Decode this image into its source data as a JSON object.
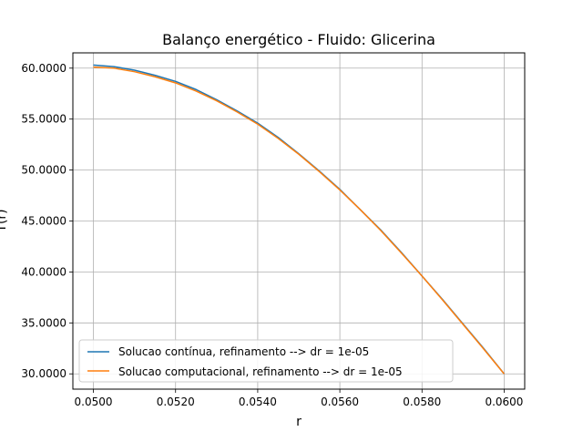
{
  "chart_data": {
    "type": "line",
    "title": "Balanço energético - Fluido: Glicerina",
    "xlabel": "r",
    "ylabel": "T(r)",
    "xlim": [
      0.0495,
      0.0605
    ],
    "ylim": [
      28.5,
      61.5
    ],
    "xticks": [
      0.05,
      0.052,
      0.054,
      0.056,
      0.058,
      0.06
    ],
    "xtick_labels": [
      "0.0500",
      "0.0520",
      "0.0540",
      "0.0560",
      "0.0580",
      "0.0600"
    ],
    "yticks": [
      30,
      35,
      40,
      45,
      50,
      55,
      60
    ],
    "ytick_labels": [
      "30.0000",
      "35.0000",
      "40.0000",
      "45.0000",
      "50.0000",
      "55.0000",
      "60.0000"
    ],
    "grid": true,
    "legend_position": "lower-left",
    "series": [
      {
        "name": "Solucao contínua, refinamento --> dr = 1e-05",
        "color": "#1f77b4",
        "x": [
          0.05,
          0.0505,
          0.051,
          0.0515,
          0.052,
          0.0525,
          0.053,
          0.0535,
          0.054,
          0.0545,
          0.055,
          0.0555,
          0.056,
          0.0565,
          0.057,
          0.0575,
          0.058,
          0.0585,
          0.059,
          0.0595,
          0.06
        ],
        "y": [
          60.3,
          60.15,
          59.8,
          59.3,
          58.7,
          57.9,
          56.9,
          55.8,
          54.6,
          53.2,
          51.6,
          49.9,
          48.1,
          46.1,
          44.1,
          41.9,
          39.6,
          37.3,
          34.9,
          32.5,
          30.0
        ]
      },
      {
        "name": "Solucao computacional, refinamento --> dr = 1e-05",
        "color": "#ff7f0e",
        "x": [
          0.05,
          0.0505,
          0.051,
          0.0515,
          0.052,
          0.0525,
          0.053,
          0.0535,
          0.054,
          0.0545,
          0.055,
          0.0555,
          0.056,
          0.0565,
          0.057,
          0.0575,
          0.058,
          0.0585,
          0.059,
          0.0595,
          0.06
        ],
        "y": [
          60.1,
          60.0,
          59.65,
          59.15,
          58.55,
          57.75,
          56.8,
          55.7,
          54.5,
          53.1,
          51.55,
          49.85,
          48.05,
          46.1,
          44.05,
          41.85,
          39.6,
          37.25,
          34.85,
          32.45,
          30.0
        ]
      }
    ]
  }
}
